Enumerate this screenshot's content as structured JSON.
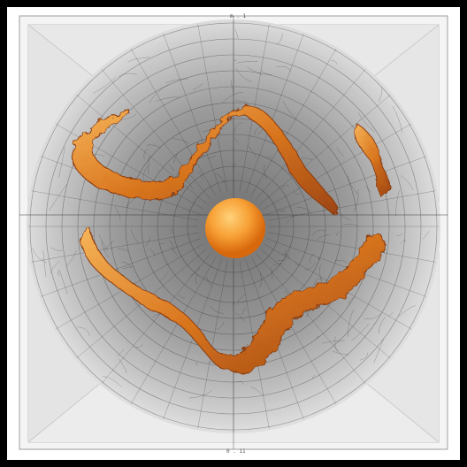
{
  "image": {
    "colors": {
      "outer_border": "#000000",
      "paper": "#ffffff",
      "box_wall_light": "#f2f2f2",
      "box_wall_dark": "#dcdcdc",
      "tunnel_center": "#6f6f6f",
      "tunnel_edge": "#dcdcdc",
      "web_lines": "#2b2b2b",
      "sphere_light": "#ffc266",
      "sphere_dark": "#e0760e",
      "flame_light": "#f3a94a",
      "flame_dark": "#8a3a10"
    },
    "labels": {
      "top": "m . 1",
      "bottom": "0 . 11"
    }
  }
}
